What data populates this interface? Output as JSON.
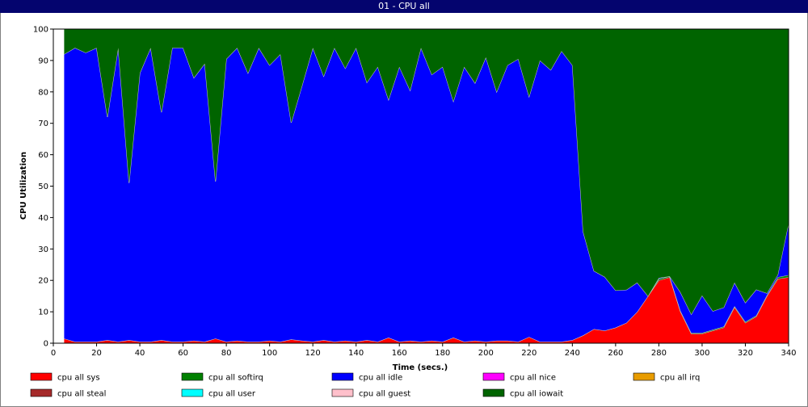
{
  "window": {
    "title": "01 - CPU all"
  },
  "chart_data": {
    "type": "area",
    "stacked": true,
    "xlabel": "Time (secs.)",
    "ylabel": "CPU Utilization",
    "xlim": [
      0,
      340
    ],
    "ylim": [
      0,
      100
    ],
    "xticks": [
      0,
      20,
      40,
      60,
      80,
      100,
      120,
      140,
      160,
      180,
      200,
      220,
      240,
      260,
      280,
      300,
      320,
      340
    ],
    "yticks": [
      0,
      10,
      20,
      30,
      40,
      50,
      60,
      70,
      80,
      90,
      100
    ],
    "grid": false,
    "legend_position": "bottom",
    "x": [
      5,
      10,
      15,
      20,
      25,
      30,
      35,
      40,
      45,
      50,
      55,
      60,
      65,
      70,
      75,
      80,
      85,
      90,
      95,
      100,
      105,
      110,
      115,
      120,
      125,
      130,
      135,
      140,
      145,
      150,
      155,
      160,
      165,
      170,
      175,
      180,
      185,
      190,
      195,
      200,
      205,
      210,
      215,
      220,
      225,
      230,
      235,
      240,
      245,
      250,
      255,
      260,
      265,
      270,
      275,
      280,
      285,
      290,
      295,
      300,
      305,
      310,
      315,
      320,
      325,
      330,
      335,
      340
    ],
    "series": [
      {
        "name": "cpu all sys",
        "color": "#ff0000",
        "values": [
          1.5,
          0.5,
          0.5,
          0.5,
          1,
          0.5,
          1,
          0.5,
          0.5,
          1,
          0.5,
          0.5,
          0.8,
          0.5,
          1.5,
          0.5,
          0.8,
          0.5,
          0.5,
          0.8,
          0.5,
          1.2,
          0.8,
          0.5,
          1,
          0.5,
          0.8,
          0.5,
          1,
          0.5,
          1.8,
          0.5,
          0.8,
          0.5,
          0.8,
          0.5,
          1.8,
          0.5,
          0.8,
          0.5,
          0.8,
          0.8,
          0.5,
          2,
          0.5,
          0.5,
          0.5,
          1,
          2.5,
          4.5,
          4,
          5,
          6.5,
          10,
          15,
          20,
          21,
          10,
          3,
          3,
          4,
          5,
          11.5,
          6.5,
          8.5,
          15,
          20.5,
          21
        ]
      },
      {
        "name": "cpu all softirq",
        "color": "#008000",
        "values": [
          0,
          0,
          0,
          0,
          0,
          0,
          0,
          0,
          0,
          0,
          0,
          0,
          0,
          0,
          0,
          0,
          0,
          0,
          0,
          0,
          0,
          0,
          0,
          0,
          0,
          0,
          0,
          0,
          0,
          0,
          0,
          0,
          0,
          0,
          0,
          0,
          0,
          0,
          0,
          0,
          0,
          0,
          0,
          0,
          0,
          0,
          0,
          0,
          0,
          0,
          0,
          0,
          0,
          0,
          0,
          0.5,
          0.3,
          0.3,
          0.3,
          0.3,
          0.3,
          0.3,
          0.3,
          0.3,
          0.3,
          0.3,
          0.5,
          0.7
        ]
      },
      {
        "name": "cpu all idle",
        "color": "#0000ff",
        "values": [
          90.5,
          93.5,
          92,
          93.5,
          71,
          93.5,
          50,
          85.5,
          93.5,
          72.5,
          93.5,
          93.5,
          83.7,
          88.5,
          50,
          90,
          93.2,
          85.5,
          93.5,
          87.7,
          91.5,
          69,
          81.2,
          93.5,
          84,
          93.5,
          86.7,
          93.5,
          82,
          87.5,
          75.7,
          87.5,
          79.7,
          93.5,
          84.7,
          87.5,
          75.2,
          87.5,
          82,
          90.5,
          79.2,
          87.7,
          90,
          76.5,
          89.5,
          86.5,
          92.5,
          87.5,
          33,
          18.5,
          17.1,
          11.8,
          10.5,
          9.3,
          0,
          0.3,
          0,
          5.9,
          5.9,
          11.9,
          5.9,
          6.1,
          7.5,
          6.1,
          8.3,
          0.6,
          0.8,
          16.5
        ]
      },
      {
        "name": "cpu all nice",
        "color": "#ff00ff",
        "values": [
          0,
          0,
          0,
          0,
          0,
          0,
          0,
          0,
          0,
          0,
          0,
          0,
          0,
          0,
          0,
          0,
          0,
          0,
          0,
          0,
          0,
          0,
          0,
          0,
          0,
          0,
          0,
          0,
          0,
          0,
          0,
          0,
          0,
          0,
          0,
          0,
          0,
          0,
          0,
          0,
          0,
          0,
          0,
          0,
          0,
          0,
          0,
          0,
          0,
          0,
          0,
          0,
          0,
          0,
          0,
          0,
          0,
          0,
          0,
          0,
          0,
          0,
          0,
          0,
          0,
          0,
          0,
          0
        ]
      },
      {
        "name": "cpu all irq",
        "color": "#e89c00",
        "values": [
          0,
          0,
          0,
          0,
          0,
          0,
          0,
          0,
          0,
          0,
          0,
          0,
          0,
          0,
          0,
          0,
          0,
          0,
          0,
          0,
          0,
          0,
          0,
          0,
          0,
          0,
          0,
          0,
          0,
          0,
          0,
          0,
          0,
          0,
          0,
          0,
          0,
          0,
          0,
          0,
          0,
          0,
          0,
          0,
          0,
          0,
          0,
          0,
          0,
          0,
          0,
          0,
          0,
          0,
          0,
          0,
          0,
          0,
          0,
          0,
          0,
          0,
          0,
          0,
          0,
          0,
          0,
          0
        ]
      },
      {
        "name": "cpu all steal",
        "color": "#a52a2a",
        "values": [
          0,
          0,
          0,
          0,
          0,
          0,
          0,
          0,
          0,
          0,
          0,
          0,
          0,
          0,
          0,
          0,
          0,
          0,
          0,
          0,
          0,
          0,
          0,
          0,
          0,
          0,
          0,
          0,
          0,
          0,
          0,
          0,
          0,
          0,
          0,
          0,
          0,
          0,
          0,
          0,
          0,
          0,
          0,
          0,
          0,
          0,
          0,
          0,
          0,
          0,
          0,
          0,
          0,
          0,
          0,
          0,
          0,
          0,
          0,
          0,
          0,
          0,
          0,
          0,
          0,
          0,
          0,
          0
        ]
      },
      {
        "name": "cpu all user",
        "color": "#00ffff",
        "values": [
          0,
          0,
          0,
          0,
          0,
          0,
          0,
          0,
          0,
          0,
          0,
          0,
          0,
          0,
          0,
          0,
          0,
          0,
          0,
          0,
          0,
          0,
          0,
          0,
          0,
          0,
          0,
          0,
          0,
          0,
          0,
          0,
          0,
          0,
          0,
          0,
          0,
          0,
          0,
          0,
          0,
          0,
          0,
          0,
          0,
          0,
          0,
          0,
          0,
          0,
          0,
          0,
          0,
          0,
          0,
          0,
          0,
          0,
          0,
          0,
          0,
          0,
          0,
          0,
          0,
          0,
          0,
          0
        ]
      },
      {
        "name": "cpu all guest",
        "color": "#ffc0cb",
        "values": [
          0,
          0,
          0,
          0,
          0,
          0,
          0,
          0,
          0,
          0,
          0,
          0,
          0,
          0,
          0,
          0,
          0,
          0,
          0,
          0,
          0,
          0,
          0,
          0,
          0,
          0,
          0,
          0,
          0,
          0,
          0,
          0,
          0,
          0,
          0,
          0,
          0,
          0,
          0,
          0,
          0,
          0,
          0,
          0,
          0,
          0,
          0,
          0,
          0,
          0,
          0,
          0,
          0,
          0,
          0,
          0,
          0,
          0,
          0,
          0,
          0,
          0,
          0,
          0,
          0,
          0,
          0,
          0
        ]
      },
      {
        "name": "cpu all iowait",
        "color": "#006400",
        "values": [
          8,
          6,
          7.5,
          6,
          28,
          6,
          49,
          14,
          6,
          26.5,
          6,
          6,
          15.5,
          11,
          48.5,
          9.5,
          6,
          14,
          6,
          11.5,
          8,
          29.8,
          18,
          6,
          15,
          6,
          12.5,
          6,
          17,
          12,
          22.5,
          12,
          19.5,
          6,
          14.5,
          12,
          23,
          12,
          17.2,
          9,
          20,
          11.5,
          9.5,
          21.5,
          10,
          13,
          7,
          11.5,
          64.5,
          77,
          78.9,
          83.2,
          83,
          80.7,
          85,
          79.2,
          78.7,
          83.8,
          90.8,
          84.8,
          89.8,
          88.6,
          80.7,
          87.1,
          82.9,
          84.1,
          78.2,
          61.8
        ]
      }
    ]
  }
}
